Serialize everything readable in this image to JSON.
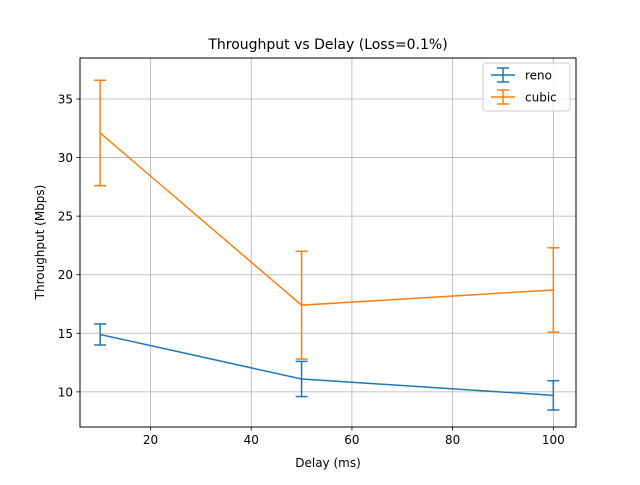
{
  "chart_data": {
    "type": "line",
    "title": "Throughput vs Delay (Loss=0.1%)",
    "xlabel": "Delay (ms)",
    "ylabel": "Throughput (Mbps)",
    "xlim": [
      6,
      104.5
    ],
    "ylim": [
      7,
      38.5
    ],
    "xticks": [
      20,
      40,
      60,
      80,
      100
    ],
    "yticks": [
      10,
      15,
      20,
      25,
      30,
      35
    ],
    "grid": true,
    "legend_position": "top-right",
    "x": [
      10,
      50,
      100
    ],
    "series": [
      {
        "name": "reno",
        "color": "#1f77b4",
        "values": [
          14.9,
          11.1,
          9.7
        ],
        "error": [
          0.9,
          1.5,
          1.25
        ]
      },
      {
        "name": "cubic",
        "color": "#ff7f0e",
        "values": [
          32.1,
          17.4,
          18.7
        ],
        "error": [
          4.5,
          4.6,
          3.6
        ]
      }
    ]
  }
}
